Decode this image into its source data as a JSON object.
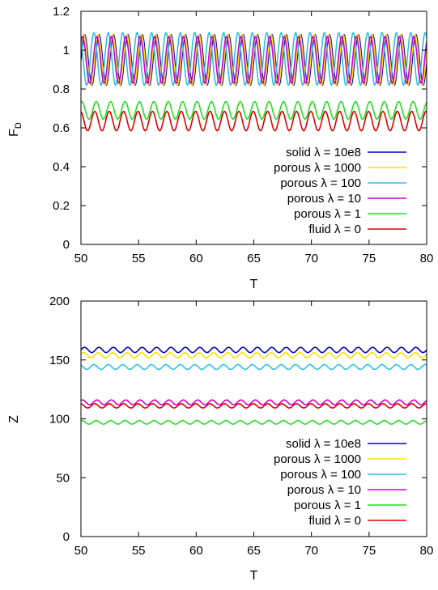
{
  "chart_data": [
    {
      "type": "line",
      "xlabel": "T",
      "ylabel": "F",
      "ylabel_sub": "D",
      "xlim": [
        50,
        80
      ],
      "ylim": [
        0,
        1.2
      ],
      "xticks": [
        "50",
        "55",
        "60",
        "65",
        "70",
        "75",
        "80"
      ],
      "yticks": [
        "0",
        "0.2",
        "0.4",
        "0.6",
        "0.8",
        "1",
        "1.2"
      ],
      "grid": false,
      "legend_position": "bottom-right",
      "series": [
        {
          "name": "solid  λ = 10e8",
          "color": "#0000c8",
          "mean": 0.95,
          "amp": 0.13,
          "period": 1.25,
          "phase": 0.0
        },
        {
          "name": "porous  λ = 1000",
          "color": "#ffe000",
          "mean": 0.95,
          "amp": 0.13,
          "period": 1.25,
          "phase": 0.35
        },
        {
          "name": "porous  λ = 100",
          "color": "#30c0e0",
          "mean": 0.955,
          "amp": 0.135,
          "period": 1.25,
          "phase": 2.2
        },
        {
          "name": "porous  λ = 10",
          "color": "#d000d0",
          "mean": 0.95,
          "amp": 0.12,
          "period": 1.25,
          "phase": 0.9
        },
        {
          "name": "porous  λ = 1",
          "color": "#20e020",
          "mean": 0.69,
          "amp": 0.045,
          "period": 1.25,
          "phase": 1.2
        },
        {
          "name": "fluid  λ = 0",
          "color": "#e00000",
          "mean": 0.635,
          "amp": 0.05,
          "period": 1.25,
          "phase": 1.8
        }
      ]
    },
    {
      "type": "line",
      "xlabel": "T",
      "ylabel": "Z",
      "ylabel_sub": "",
      "xlim": [
        50,
        80
      ],
      "ylim": [
        0,
        200
      ],
      "xticks": [
        "50",
        "55",
        "60",
        "65",
        "70",
        "75",
        "80"
      ],
      "yticks": [
        "0",
        "50",
        "100",
        "150",
        "200"
      ],
      "grid": false,
      "legend_position": "bottom-right",
      "series": [
        {
          "name": "solid  λ = 10e8",
          "color": "#0000c8",
          "mean": 158.5,
          "amp": 2.2,
          "period": 1.25,
          "phase": 0.0
        },
        {
          "name": "porous  λ = 1000",
          "color": "#ffe000",
          "mean": 154.0,
          "amp": 2.2,
          "period": 1.25,
          "phase": 0.35
        },
        {
          "name": "porous  λ = 100",
          "color": "#30c0e0",
          "mean": 144.0,
          "amp": 2.0,
          "period": 1.25,
          "phase": 2.2
        },
        {
          "name": "porous  λ = 10",
          "color": "#d000d0",
          "mean": 114.0,
          "amp": 2.0,
          "period": 1.25,
          "phase": 0.9
        },
        {
          "name": "porous  λ = 1",
          "color": "#20e020",
          "mean": 97.0,
          "amp": 1.5,
          "period": 1.25,
          "phase": 1.2
        },
        {
          "name": "fluid  λ = 0",
          "color": "#e00000",
          "mean": 111.0,
          "amp": 1.8,
          "period": 1.25,
          "phase": 1.8
        }
      ]
    }
  ]
}
